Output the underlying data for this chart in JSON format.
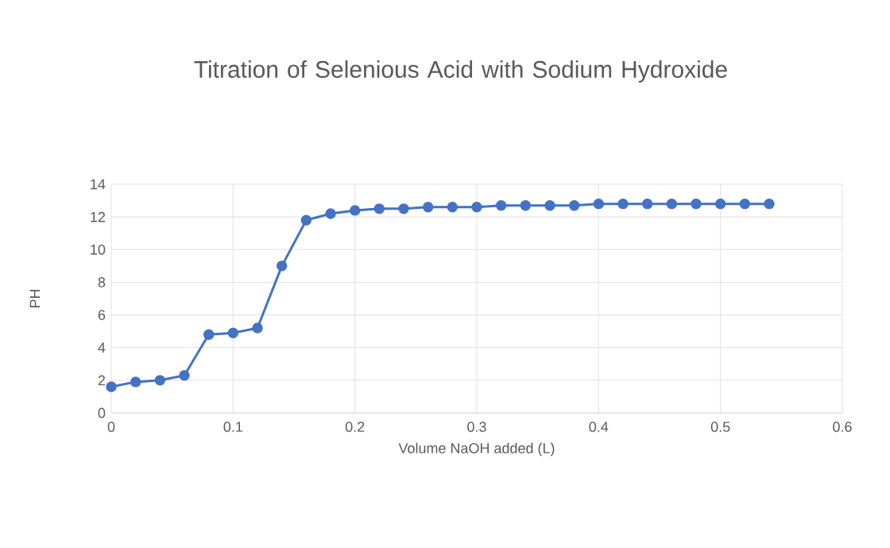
{
  "chart_data": {
    "type": "line",
    "title": "Titration of Selenious Acid with Sodium Hydroxide",
    "xlabel": "Volume NaOH added (L)",
    "ylabel": "PH",
    "x": [
      0,
      0.02,
      0.04,
      0.06,
      0.08,
      0.1,
      0.12,
      0.14,
      0.16,
      0.18,
      0.2,
      0.22,
      0.24,
      0.26,
      0.28,
      0.3,
      0.32,
      0.34,
      0.36,
      0.38,
      0.4,
      0.42,
      0.44,
      0.46,
      0.48,
      0.5,
      0.52,
      0.54
    ],
    "series": [
      {
        "color": "#4472c4",
        "values": [
          1.6,
          1.9,
          2.0,
          2.3,
          4.8,
          4.9,
          5.2,
          9.0,
          11.8,
          12.2,
          12.4,
          12.5,
          12.5,
          12.6,
          12.6,
          12.6,
          12.7,
          12.7,
          12.7,
          12.7,
          12.8,
          12.8,
          12.8,
          12.8,
          12.8,
          12.8,
          12.8,
          12.8
        ]
      }
    ],
    "xlim": [
      0,
      0.6
    ],
    "xticks": [
      0,
      0.1,
      0.2,
      0.3,
      0.4,
      0.5,
      0.6
    ],
    "ylim": [
      0,
      14
    ],
    "yticks": [
      0,
      2,
      4,
      6,
      8,
      10,
      12,
      14
    ],
    "grid": true,
    "marker": "circle",
    "line_style": "solid"
  }
}
